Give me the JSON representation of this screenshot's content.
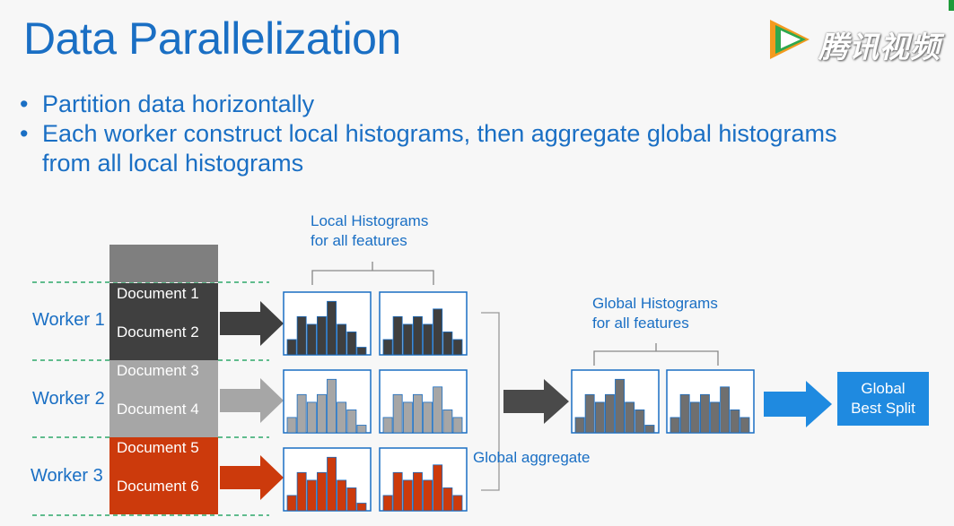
{
  "slide": {
    "title": "Data Parallelization",
    "bullets": [
      "Partition data horizontally",
      "Each worker construct local histograms, then aggregate global histograms from all local histograms"
    ]
  },
  "watermark": {
    "text": "腾讯视频"
  },
  "diagram": {
    "workers": [
      "Worker 1",
      "Worker 2",
      "Worker 3"
    ],
    "documents": [
      "Document 1",
      "Document 2",
      "Document 3",
      "Document 4",
      "Document 5",
      "Document 6"
    ],
    "local_histograms_label": [
      "Local Histograms",
      "for all features"
    ],
    "global_histograms_label": [
      "Global Histograms",
      "for all features"
    ],
    "global_aggregate_label": "Global aggregate",
    "result_label": [
      "Global",
      "Best Split"
    ],
    "histogram_a_bar_values": [
      2,
      5,
      4,
      5,
      7,
      4,
      3,
      1
    ],
    "histogram_b_bar_values": [
      2,
      5,
      4,
      5,
      4,
      6,
      3,
      2
    ],
    "colors": {
      "worker1": "#3f3f3f",
      "worker2": "#a6a6a6",
      "worker3": "#cc3a0c",
      "global": "#6f6f6f",
      "accent": "#1a6fc4",
      "result": "#1f8ae0"
    }
  }
}
